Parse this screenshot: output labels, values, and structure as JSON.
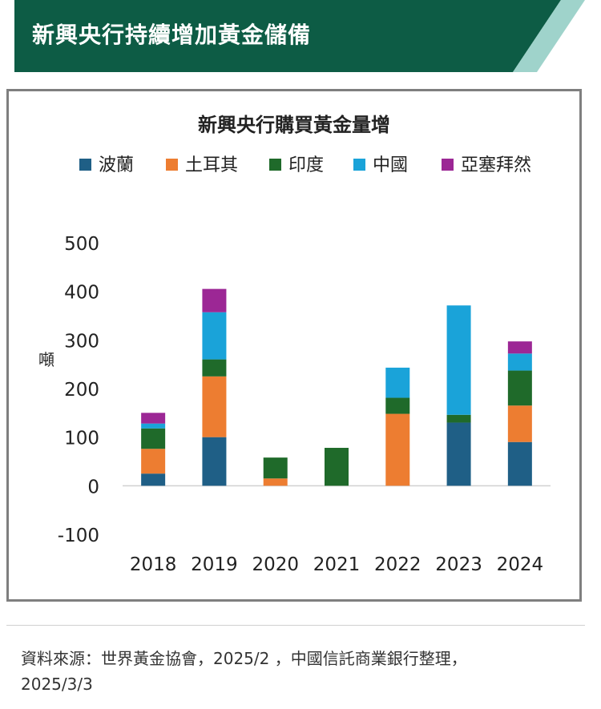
{
  "header": {
    "title": "新興央行持續增加黃金儲備",
    "colors": {
      "dark": "#0d5c45",
      "light": "#9fd3cb"
    }
  },
  "chart_data": {
    "type": "bar",
    "stacked": true,
    "title": "新興央行購買黃金量增",
    "ylabel": "噸",
    "xlabel": "",
    "categories": [
      "2018",
      "2019",
      "2020",
      "2021",
      "2022",
      "2023",
      "2024"
    ],
    "ylim": [
      -100,
      500
    ],
    "yticks": [
      500,
      400,
      300,
      200,
      100,
      0,
      -100
    ],
    "legend_position": "top",
    "grid": false,
    "series": [
      {
        "name": "波蘭",
        "color": "#1f5f86",
        "values": [
          25,
          100,
          0,
          0,
          0,
          130,
          90
        ]
      },
      {
        "name": "土耳其",
        "color": "#ed7d31",
        "values": [
          51,
          125,
          15,
          0,
          148,
          0,
          75
        ]
      },
      {
        "name": "印度",
        "color": "#1f6a2a",
        "values": [
          42,
          35,
          43,
          78,
          33,
          16,
          72
        ]
      },
      {
        "name": "中國",
        "color": "#1aa3d9",
        "values": [
          10,
          97,
          0,
          0,
          62,
          225,
          35
        ]
      },
      {
        "name": "亞塞拜然",
        "color": "#9c2795",
        "values": [
          22,
          48,
          0,
          0,
          0,
          0,
          25
        ]
      }
    ]
  },
  "footer": {
    "source_line1": "資料來源：世界黃金協會，2025/2 ，中國信託商業銀行整理，",
    "source_line2": "2025/3/3"
  }
}
